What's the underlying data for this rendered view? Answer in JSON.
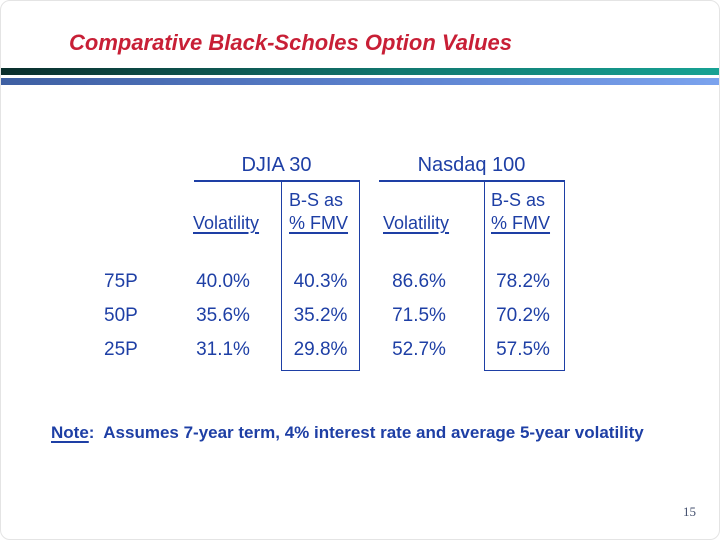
{
  "slide": {
    "title": "Comparative Black-Scholes Option Values",
    "page_number": "15"
  },
  "colors": {
    "title_red": "#c81f36",
    "table_blue": "#1e3fa5",
    "teal_bar_gradient": [
      "#0a2e2c",
      "#16a294"
    ],
    "blue_bar_gradient": [
      "#3e5fa2",
      "#7ba3ee"
    ],
    "page_number_color": "#44516f"
  },
  "table": {
    "groups": [
      {
        "label": "DJIA 30",
        "col1": "Volatility",
        "col2_line1": "B-S as",
        "col2_line2": "% FMV"
      },
      {
        "label": "Nasdaq 100",
        "col1": "Volatility",
        "col2_line1": "B-S as",
        "col2_line2": "% FMV"
      }
    ],
    "rows": [
      {
        "label": "75P",
        "values": [
          "40.0%",
          "40.3%",
          "86.6%",
          "78.2%"
        ]
      },
      {
        "label": "50P",
        "values": [
          "35.6%",
          "35.2%",
          "71.5%",
          "70.2%"
        ]
      },
      {
        "label": "25P",
        "values": [
          "31.1%",
          "29.8%",
          "52.7%",
          "57.5%"
        ]
      }
    ]
  },
  "note": {
    "label": "Note",
    "text": ":  Assumes 7-year term, 4% interest rate and average 5-year volatility"
  }
}
